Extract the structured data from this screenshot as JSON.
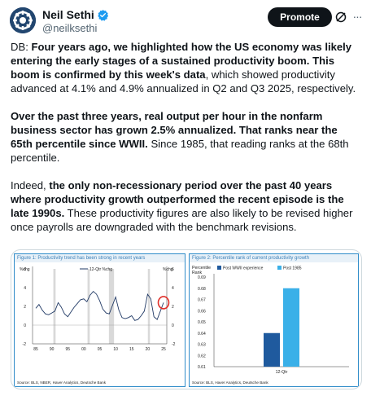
{
  "author": {
    "name": "Neil Sethi",
    "handle": "@neilksethi",
    "verified": true,
    "avatar_icon": "cogwheel-logo-icon"
  },
  "actions": {
    "promote_label": "Promote",
    "grok_icon": "grok-icon",
    "more_icon": "more-icon"
  },
  "tweet": {
    "p1_prefix": "DB: ",
    "p1_bold": "Four years ago, we highlighted how the US economy was likely entering the early stages of a sustained productivity boom. This boom is confirmed by this week's data",
    "p1_rest": ", which showed productivity advanced at 4.1% and 4.9% annualized in Q2 and Q3 2025, respectively.",
    "p2_bold": "Over the past three years, real output per hour in the nonfarm business sector has grown 2.5% annualized. That ranks near the 65th percentile since WWII.",
    "p2_rest": " Since 1985, that reading ranks at the 68th percentile.",
    "p3_prefix": "Indeed, ",
    "p3_bold": "the only non-recessionary period over the past 40 years where productivity growth outperformed the recent episode is the late 1990s.",
    "p3_rest": " These productivity figures are also likely to be revised higher once payrolls are downgraded with the benchmark revisions."
  },
  "figure1": {
    "title": "Figure 1: Productivity trend has been strong in recent years",
    "left_unit": "%chg",
    "right_unit": "%chg",
    "legend": "12-Qtr %chg",
    "source": "Source: BLS, NBER, Haver Analytics, Deutsche Bank",
    "highlight_color": "#e0302a",
    "line_color": "#1f3864"
  },
  "figure2": {
    "title": "Figure 2: Percentile rank of current productivity growth",
    "ylabel_line1": "Percentile",
    "ylabel_line2": "Rank",
    "source": "Source: BLS, Haver Analytics, Deutsche Bank"
  },
  "chart_data": [
    {
      "type": "line",
      "title": "Figure 1: Productivity trend has been strong in recent years",
      "ylabel": "%chg",
      "y2label": "%chg",
      "ylim": [
        -2,
        6
      ],
      "xlim": [
        1985,
        2025
      ],
      "x_ticks": [
        "85",
        "90",
        "95",
        "00",
        "05",
        "10",
        "15",
        "20",
        "25"
      ],
      "y_ticks": [
        "-2",
        "0",
        "2",
        "4",
        "6"
      ],
      "recessions": [
        [
          1990.5,
          1991.2
        ],
        [
          2001.2,
          2001.9
        ],
        [
          2007.9,
          2009.5
        ],
        [
          2020.1,
          2020.4
        ]
      ],
      "series": [
        {
          "name": "12-Qtr %chg",
          "x": [
            1985,
            1986,
            1987,
            1988,
            1989,
            1990,
            1991,
            1992,
            1993,
            1994,
            1995,
            1996,
            1997,
            1998,
            1999,
            2000,
            2001,
            2002,
            2003,
            2004,
            2005,
            2006,
            2007,
            2008,
            2009,
            2010,
            2011,
            2012,
            2013,
            2014,
            2015,
            2016,
            2017,
            2018,
            2019,
            2020,
            2021,
            2022,
            2023,
            2024,
            2025
          ],
          "y": [
            1.8,
            2.2,
            1.6,
            1.2,
            1.1,
            1.3,
            1.5,
            2.4,
            1.9,
            1.2,
            0.9,
            1.4,
            1.9,
            2.3,
            2.7,
            2.8,
            2.5,
            3.2,
            3.6,
            3.3,
            2.6,
            1.7,
            1.3,
            1.2,
            2.1,
            3.0,
            1.6,
            0.8,
            0.7,
            0.8,
            1.0,
            0.5,
            0.6,
            1.0,
            1.5,
            3.3,
            2.8,
            0.9,
            0.6,
            1.5,
            2.4
          ]
        }
      ]
    },
    {
      "type": "bar",
      "title": "Figure 2: Percentile rank of current productivity growth",
      "ylabel": "Percentile Rank",
      "categories": [
        "12-Qtr"
      ],
      "ylim": [
        0.61,
        0.69
      ],
      "y_ticks": [
        "0.61",
        "0.62",
        "0.63",
        "0.64",
        "0.65",
        "0.66",
        "0.67",
        "0.68",
        "0.69"
      ],
      "series": [
        {
          "name": "Post WWII experience",
          "values": [
            0.64
          ],
          "color": "#1f5a9e"
        },
        {
          "name": "Post 1985",
          "values": [
            0.68
          ],
          "color": "#3ab0e8"
        }
      ]
    }
  ]
}
